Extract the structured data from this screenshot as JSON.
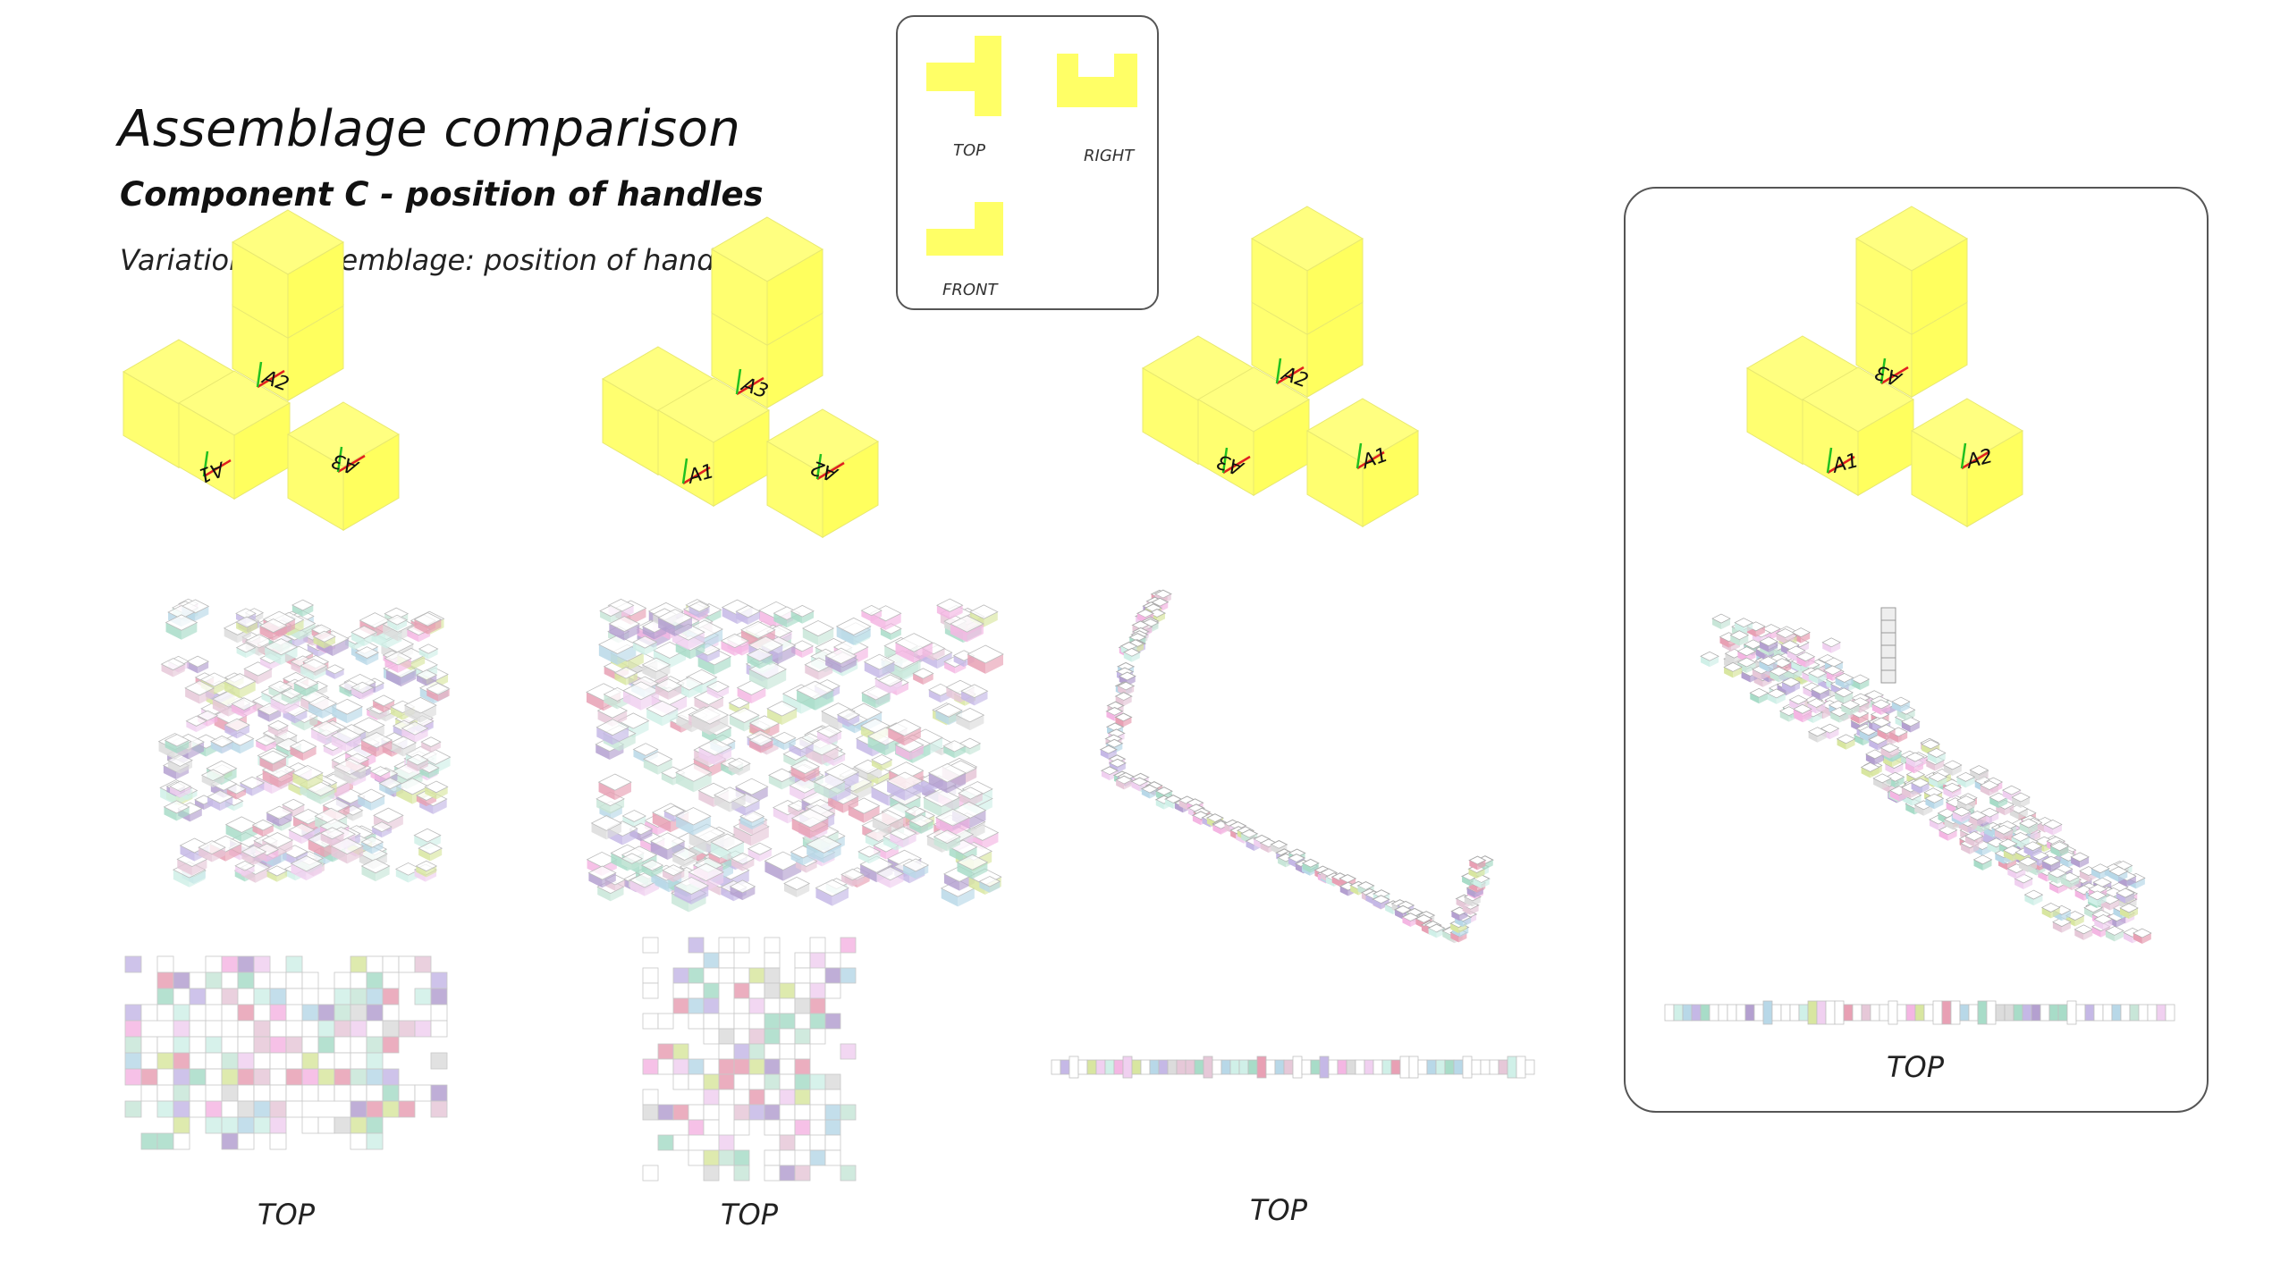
{
  "header": {
    "title": "Assemblage comparison",
    "subtitle": "Component C - position of handles",
    "caption": "Variation of assemblage: position of handle A3"
  },
  "legend": {
    "top_label": "TOP",
    "right_label": "RIGHT",
    "front_label": "FRONT"
  },
  "views": [
    {
      "top_label": "TOP",
      "handles": [
        "A2",
        "A3",
        "A1"
      ]
    },
    {
      "top_label": "TOP",
      "handles": [
        "A3",
        "A2",
        "A1"
      ]
    },
    {
      "top_label": "TOP",
      "handles": [
        "A2",
        "A1",
        "A3"
      ]
    },
    {
      "top_label": "TOP",
      "handles": [
        "A3",
        "A2",
        "A1"
      ],
      "highlighted": true
    }
  ],
  "colors": {
    "component_fill": "#ffff66",
    "component_edge": "#e8e870",
    "handle_red": "#e02020",
    "handle_green": "#20c020",
    "frame": "#555555",
    "palette": [
      "#f4b6e3",
      "#a8dcc8",
      "#c5b8e6",
      "#e8a0b4",
      "#d8e6a0",
      "#b8d8e8",
      "#e6c8d8",
      "#c8e6d8",
      "#dcdcdc",
      "#b4a0d0",
      "#f0d0f0",
      "#d0f0e8"
    ]
  }
}
